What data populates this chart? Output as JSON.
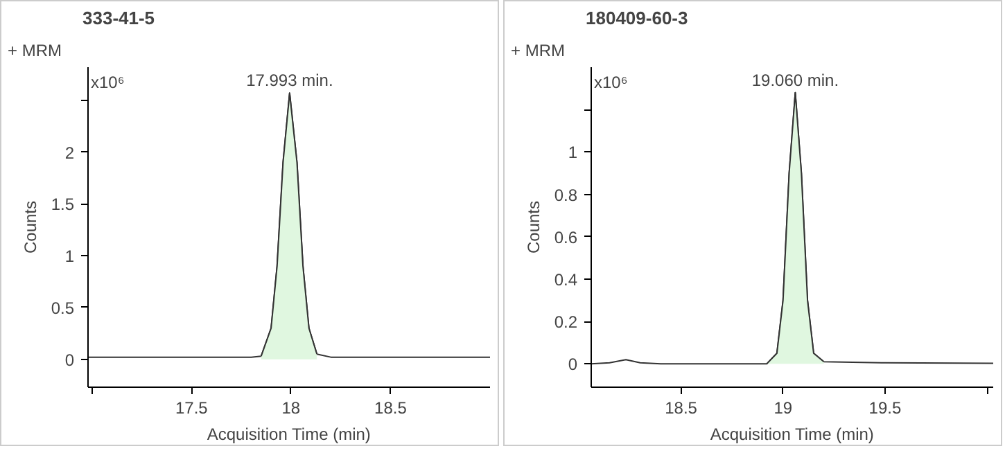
{
  "chart_data": [
    {
      "type": "line",
      "title": "333-41-5",
      "xlabel": "Acquisition Time (min)",
      "ylabel": "Counts",
      "xlim": [
        16.98,
        19.0
      ],
      "ylim": [
        -0.27,
        2.82
      ],
      "xticks": [
        {
          "value": 17,
          "label": null
        },
        17.5,
        18,
        18.5
      ],
      "yticks": [
        0,
        0.5,
        1,
        1.5,
        2,
        {
          "value": 2.5,
          "label": null
        }
      ],
      "grid": false,
      "annotations": [
        "+ MRM",
        "x10⁶",
        {
          "text": "17.993 min.",
          "x": 17.993,
          "y": 2.57
        }
      ],
      "series": [
        {
          "color": "#333333",
          "x": [
            16.98,
            17.8,
            17.85,
            17.9,
            17.93,
            17.96,
            17.993,
            18.03,
            18.06,
            18.09,
            18.13,
            18.2,
            19.0
          ],
          "values": [
            0.02,
            0.02,
            0.03,
            0.3,
            0.9,
            1.9,
            2.57,
            1.9,
            0.9,
            0.3,
            0.05,
            0.02,
            0.02
          ]
        },
        {
          "type": "area",
          "color": "#e0f7e0",
          "x": [
            17.85,
            17.9,
            17.93,
            17.96,
            17.993,
            18.03,
            18.06,
            18.09,
            18.13
          ],
          "values": [
            0.03,
            0.3,
            0.9,
            1.9,
            2.57,
            1.9,
            0.9,
            0.3,
            0.05
          ]
        }
      ]
    },
    {
      "type": "line",
      "title": "180409-60-3",
      "xlabel": "Acquisition Time (min)",
      "ylabel": "Counts",
      "xlim": [
        18.06,
        20.03
      ],
      "ylim": [
        -0.11,
        1.4
      ],
      "xticks": [
        18.5,
        19,
        19.5,
        {
          "value": 20,
          "label": null
        }
      ],
      "yticks": [
        0,
        0.2,
        0.4,
        0.6,
        0.8,
        1,
        {
          "value": 1.2,
          "label": null
        }
      ],
      "grid": false,
      "annotations": [
        "+ MRM",
        "x10⁶",
        {
          "text": "19.060 min.",
          "x": 19.06,
          "y": 1.28
        }
      ],
      "series": [
        {
          "color": "#333333",
          "x": [
            18.06,
            18.15,
            18.23,
            18.3,
            18.4,
            18.92,
            18.97,
            19.0,
            19.03,
            19.06,
            19.09,
            19.12,
            19.15,
            19.2,
            19.5,
            20.03
          ],
          "values": [
            0,
            0.005,
            0.02,
            0.005,
            0,
            0,
            0.05,
            0.3,
            0.9,
            1.28,
            0.9,
            0.3,
            0.05,
            0.01,
            0.005,
            0.003
          ]
        },
        {
          "type": "area",
          "color": "#e0f7e0",
          "x": [
            18.92,
            18.97,
            19.0,
            19.03,
            19.06,
            19.09,
            19.12,
            19.15,
            19.2
          ],
          "values": [
            0,
            0.05,
            0.3,
            0.9,
            1.28,
            0.9,
            0.3,
            0.05,
            0.01
          ]
        }
      ]
    }
  ]
}
